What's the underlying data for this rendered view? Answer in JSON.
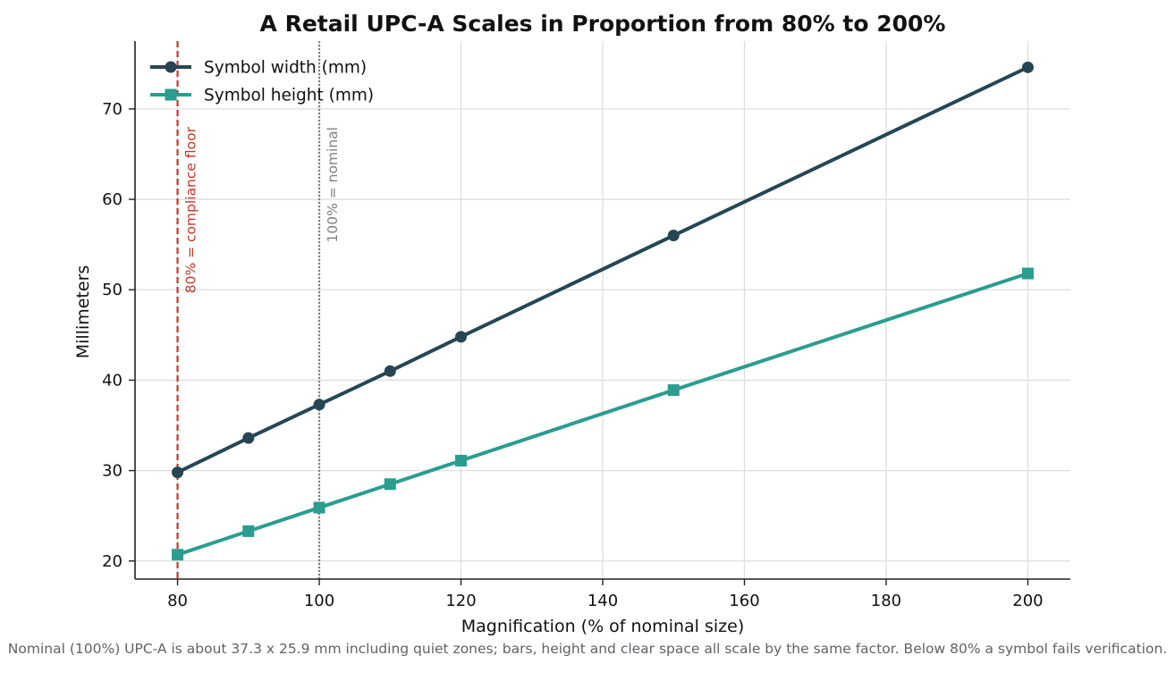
{
  "chart_data": {
    "type": "line",
    "title": "A Retail UPC-A Scales in Proportion from 80% to 200%",
    "xlabel": "Magnification (% of nominal size)",
    "ylabel": "Millimeters",
    "xlim": [
      74,
      206
    ],
    "ylim": [
      18,
      77.5
    ],
    "xticks": [
      80,
      100,
      120,
      140,
      160,
      180,
      200
    ],
    "yticks": [
      20,
      30,
      40,
      50,
      60,
      70
    ],
    "grid": true,
    "legend_position": "top-left",
    "x": [
      80,
      90,
      100,
      110,
      120,
      150,
      200
    ],
    "series": [
      {
        "name": "Symbol width (mm)",
        "marker": "circle",
        "color": "#264653",
        "values": [
          29.8,
          33.6,
          37.3,
          41.0,
          44.8,
          56.0,
          74.6
        ]
      },
      {
        "name": "Symbol height (mm)",
        "marker": "square",
        "color": "#2a9d8f",
        "values": [
          20.7,
          23.3,
          25.9,
          28.5,
          31.1,
          38.9,
          51.8
        ]
      }
    ],
    "reference_lines": [
      {
        "x": 80,
        "label": "80% = compliance floor",
        "style": "dashed",
        "color": "#c0392b"
      },
      {
        "x": 100,
        "label": "100% = nominal",
        "style": "dotted",
        "color": "#808080"
      }
    ],
    "caption": "Nominal (100%) UPC-A is about 37.3 x 25.9 mm including quiet zones; bars, height and clear space all scale by the same factor. Below 80% a symbol fails verification."
  }
}
